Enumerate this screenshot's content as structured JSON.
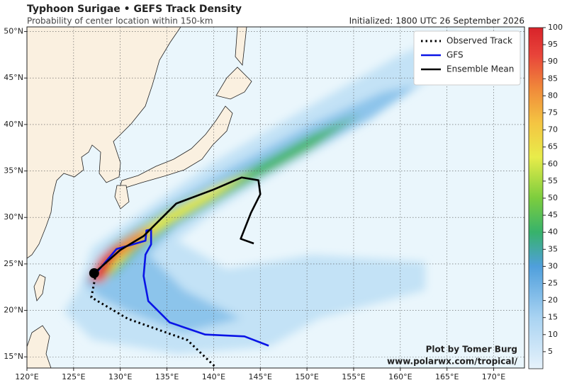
{
  "chart_data": {
    "type": "track-map",
    "title": "Typhoon Surigae • GEFS Track Density",
    "subtitle": "Probability of center location within 150-km",
    "initialized": "Initialized: 1800 UTC 26 September 2026",
    "credit": [
      "Plot by Tomer Burg",
      "www.polarwx.com/tropical/"
    ],
    "xlim": [
      120,
      173.3
    ],
    "ylim": [
      13.8,
      50.5
    ],
    "xticks": [
      {
        "value": 120,
        "label": "120°E"
      },
      {
        "value": 125,
        "label": "125°E"
      },
      {
        "value": 130,
        "label": "130°E"
      },
      {
        "value": 135,
        "label": "135°E"
      },
      {
        "value": 140,
        "label": "140°E"
      },
      {
        "value": 145,
        "label": "145°E"
      },
      {
        "value": 150,
        "label": "150°E"
      },
      {
        "value": 155,
        "label": "155°E"
      },
      {
        "value": 160,
        "label": "160°E"
      },
      {
        "value": 165,
        "label": "165°E"
      },
      {
        "value": 170,
        "label": "170°E"
      }
    ],
    "yticks": [
      {
        "value": 15,
        "label": "15°N"
      },
      {
        "value": 20,
        "label": "20°N"
      },
      {
        "value": 25,
        "label": "25°N"
      },
      {
        "value": 30,
        "label": "30°N"
      },
      {
        "value": 35,
        "label": "35°N"
      },
      {
        "value": 40,
        "label": "40°N"
      },
      {
        "value": 45,
        "label": "45°N"
      },
      {
        "value": 50,
        "label": "50°N"
      }
    ],
    "grid": true,
    "legend": "upper right",
    "colorbar": {
      "lim": [
        0,
        100
      ],
      "ticks": [
        5,
        10,
        15,
        20,
        25,
        30,
        35,
        40,
        45,
        50,
        55,
        60,
        65,
        70,
        75,
        80,
        85,
        90,
        95,
        100
      ]
    },
    "series": [
      {
        "name": "Observed Track",
        "color": "#000000",
        "linestyle": "dotted",
        "x": [
          127.4,
          126.9,
          130.8,
          137.2,
          140.3
        ],
        "values": [
          24.0,
          21.4,
          19.1,
          16.8,
          13.8
        ]
      },
      {
        "name": "GFS",
        "color": "#0a14e6",
        "linestyle": "solid",
        "x": [
          127.4,
          129.6,
          132.7,
          132.8,
          133.3,
          133.3,
          132.7,
          132.5,
          133.0,
          135.3,
          139.1,
          143.3,
          145.9
        ],
        "values": [
          24.0,
          26.6,
          27.5,
          28.6,
          28.7,
          27.1,
          26.0,
          23.7,
          21.0,
          18.7,
          17.4,
          17.2,
          16.2
        ]
      },
      {
        "name": "Ensemble Mean",
        "color": "#000000",
        "linestyle": "solid",
        "x": [
          127.2,
          130.0,
          132.5,
          134.0,
          136.0,
          140.0,
          143.0,
          144.8,
          145.0,
          144.0,
          142.9,
          144.3
        ],
        "values": [
          24.0,
          26.5,
          28.0,
          29.5,
          31.5,
          33.0,
          34.3,
          34.0,
          32.5,
          30.5,
          27.7,
          27.2
        ]
      }
    ]
  }
}
